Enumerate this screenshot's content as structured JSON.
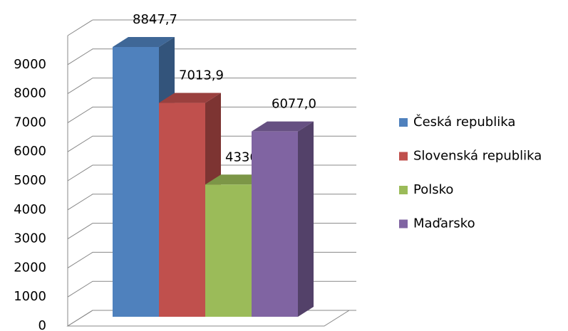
{
  "chart_data": {
    "type": "bar3d",
    "categories": [
      null
    ],
    "series": [
      {
        "name": "Česká republika",
        "color": "#4f81bd",
        "values": [
          8847.7
        ],
        "value_labels": [
          "8847,7"
        ]
      },
      {
        "name": "Slovenská republika",
        "color": "#c0504d",
        "values": [
          7013.9
        ],
        "value_labels": [
          "7013,9"
        ]
      },
      {
        "name": "Polsko",
        "color": "#9bbb59",
        "values": [
          4336.2
        ],
        "value_labels": [
          "4336,2"
        ]
      },
      {
        "name": "Maďarsko",
        "color": "#8064a2",
        "values": [
          6077.0
        ],
        "value_labels": [
          "6077,0"
        ]
      }
    ],
    "ylim": [
      0,
      10000
    ],
    "yticks": [
      0,
      1000,
      2000,
      3000,
      4000,
      5000,
      6000,
      7000,
      8000,
      9000
    ],
    "grid": true,
    "legend": "right"
  }
}
